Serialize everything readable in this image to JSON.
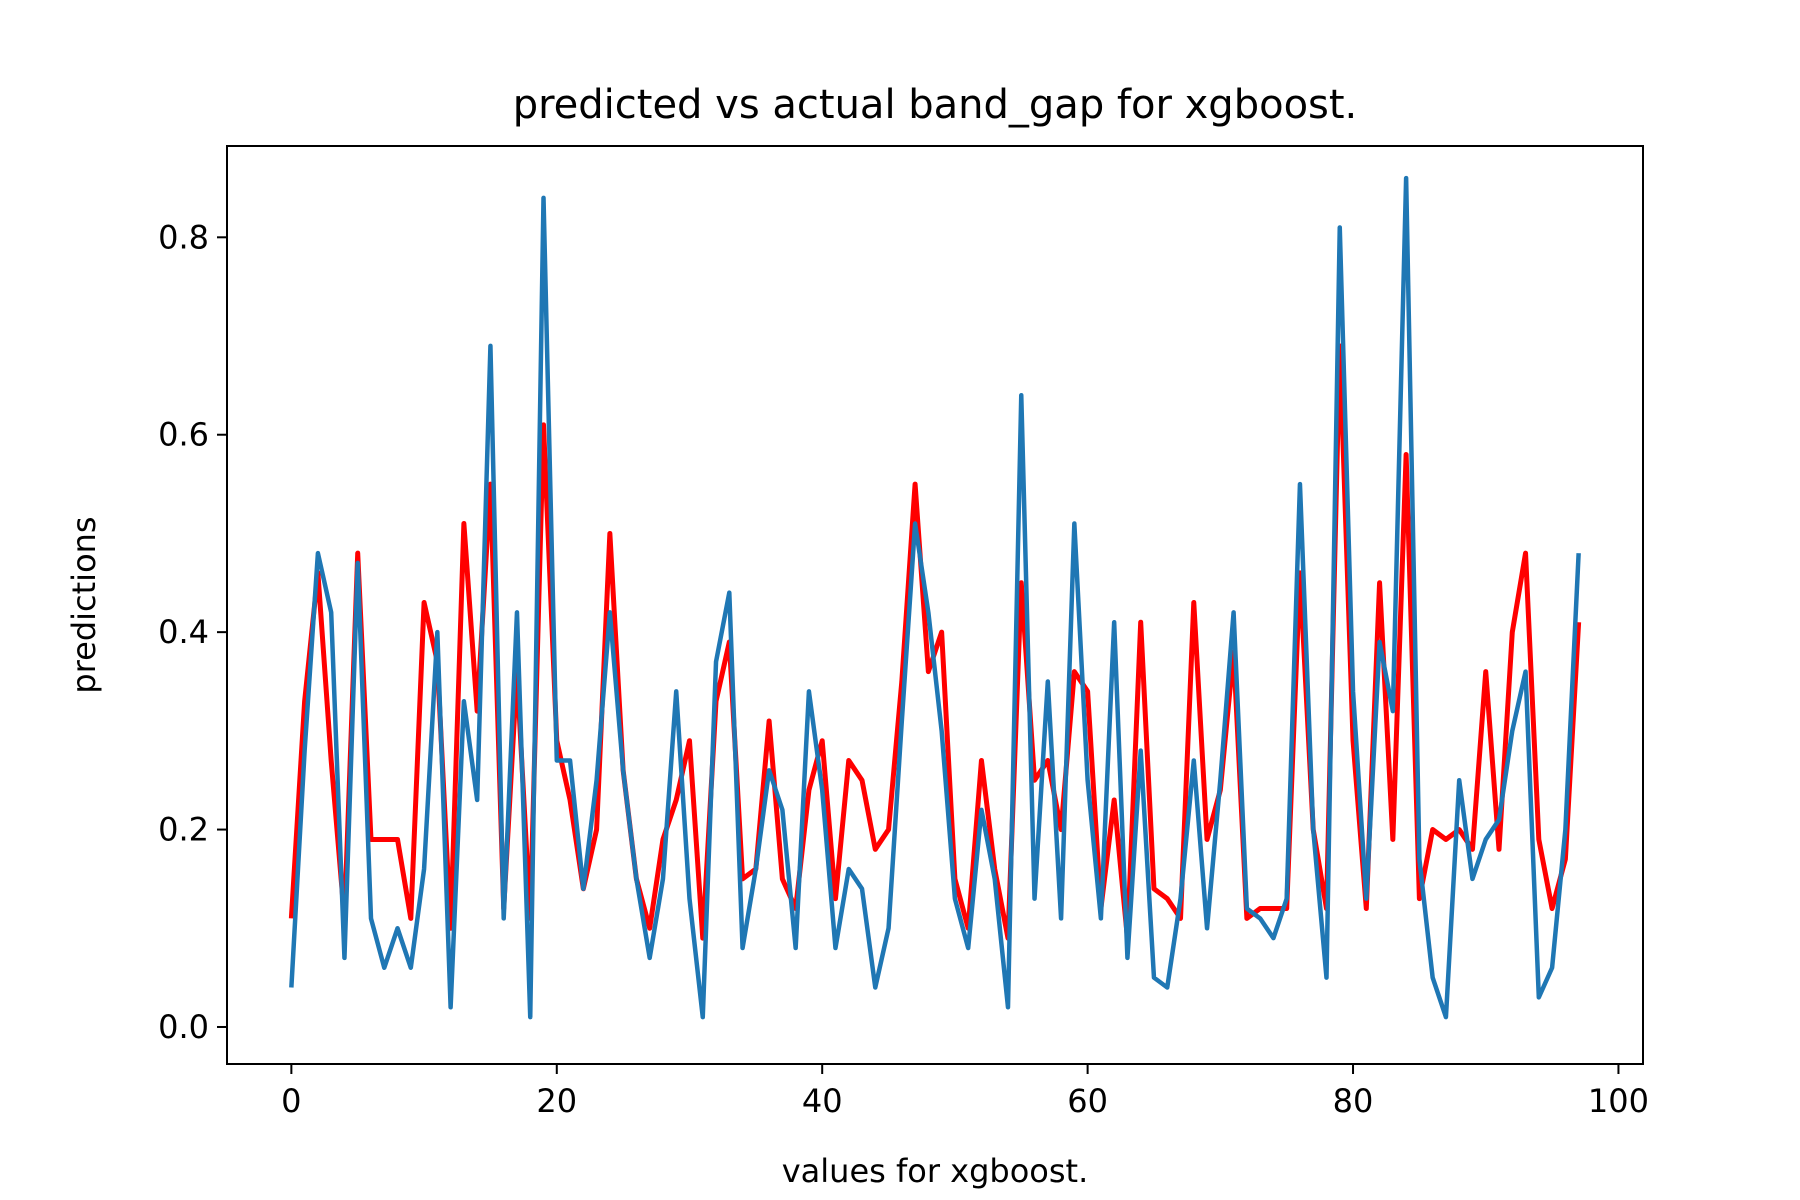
{
  "chart_data": {
    "type": "line",
    "title": "predicted vs actual band_gap for xgboost.",
    "xlabel": "values for xgboost.",
    "ylabel": "predictions",
    "xlim": [
      -4.85,
      101.85
    ],
    "ylim": [
      -0.0375,
      0.8925
    ],
    "xticks": [
      0,
      20,
      40,
      60,
      80,
      100
    ],
    "yticks": [
      0.0,
      0.2,
      0.4,
      0.6,
      0.8
    ],
    "grid": false,
    "legend": "none",
    "series": [
      {
        "color": "#ff0000",
        "x": [
          0,
          1,
          2,
          3,
          4,
          5,
          6,
          7,
          8,
          9,
          10,
          11,
          12,
          13,
          14,
          15,
          16,
          17,
          18,
          19,
          20,
          21,
          22,
          23,
          24,
          25,
          26,
          27,
          28,
          29,
          30,
          31,
          32,
          33,
          34,
          35,
          36,
          37,
          38,
          39,
          40,
          41,
          42,
          43,
          44,
          45,
          46,
          47,
          48,
          49,
          50,
          51,
          52,
          53,
          54,
          55,
          56,
          57,
          58,
          59,
          60,
          61,
          62,
          63,
          64,
          65,
          66,
          67,
          68,
          69,
          70,
          71,
          72,
          73,
          74,
          75,
          76,
          77,
          78,
          79,
          80,
          81,
          82,
          83,
          84,
          85,
          86,
          87,
          88,
          89,
          90,
          91,
          92,
          93,
          94,
          95,
          96,
          97
        ],
        "values": [
          0.11,
          0.33,
          0.46,
          0.27,
          0.11,
          0.48,
          0.19,
          0.19,
          0.19,
          0.11,
          0.43,
          0.37,
          0.1,
          0.51,
          0.32,
          0.55,
          0.12,
          0.36,
          0.11,
          0.61,
          0.29,
          0.23,
          0.14,
          0.2,
          0.5,
          0.26,
          0.15,
          0.1,
          0.19,
          0.23,
          0.29,
          0.09,
          0.33,
          0.39,
          0.15,
          0.16,
          0.31,
          0.15,
          0.12,
          0.24,
          0.29,
          0.13,
          0.27,
          0.25,
          0.18,
          0.2,
          0.35,
          0.55,
          0.36,
          0.4,
          0.15,
          0.1,
          0.27,
          0.16,
          0.09,
          0.45,
          0.25,
          0.27,
          0.2,
          0.36,
          0.34,
          0.12,
          0.23,
          0.09,
          0.41,
          0.14,
          0.13,
          0.11,
          0.43,
          0.19,
          0.24,
          0.38,
          0.11,
          0.12,
          0.12,
          0.12,
          0.46,
          0.2,
          0.12,
          0.69,
          0.29,
          0.12,
          0.45,
          0.19,
          0.58,
          0.13,
          0.2,
          0.19,
          0.2,
          0.18,
          0.36,
          0.18,
          0.4,
          0.48,
          0.19,
          0.12,
          0.17,
          0.41
        ]
      },
      {
        "color": "#1f77b4",
        "x": [
          0,
          1,
          2,
          3,
          4,
          5,
          6,
          7,
          8,
          9,
          10,
          11,
          12,
          13,
          14,
          15,
          16,
          17,
          18,
          19,
          20,
          21,
          22,
          23,
          24,
          25,
          26,
          27,
          28,
          29,
          30,
          31,
          32,
          33,
          34,
          35,
          36,
          37,
          38,
          39,
          40,
          41,
          42,
          43,
          44,
          45,
          46,
          47,
          48,
          49,
          50,
          51,
          52,
          53,
          54,
          55,
          56,
          57,
          58,
          59,
          60,
          61,
          62,
          63,
          64,
          65,
          66,
          67,
          68,
          69,
          70,
          71,
          72,
          73,
          74,
          75,
          76,
          77,
          78,
          79,
          80,
          81,
          82,
          83,
          84,
          85,
          86,
          87,
          88,
          89,
          90,
          91,
          92,
          93,
          94,
          95,
          96,
          97
        ],
        "values": [
          0.04,
          0.28,
          0.48,
          0.42,
          0.07,
          0.47,
          0.11,
          0.06,
          0.1,
          0.06,
          0.16,
          0.4,
          0.02,
          0.33,
          0.23,
          0.69,
          0.11,
          0.42,
          0.01,
          0.84,
          0.27,
          0.27,
          0.14,
          0.25,
          0.42,
          0.26,
          0.15,
          0.07,
          0.15,
          0.34,
          0.13,
          0.01,
          0.37,
          0.44,
          0.08,
          0.16,
          0.26,
          0.22,
          0.08,
          0.34,
          0.24,
          0.08,
          0.16,
          0.14,
          0.04,
          0.1,
          0.31,
          0.51,
          0.42,
          0.3,
          0.13,
          0.08,
          0.22,
          0.15,
          0.02,
          0.64,
          0.13,
          0.35,
          0.11,
          0.51,
          0.25,
          0.11,
          0.41,
          0.07,
          0.28,
          0.05,
          0.04,
          0.13,
          0.27,
          0.1,
          0.25,
          0.42,
          0.12,
          0.11,
          0.09,
          0.13,
          0.55,
          0.2,
          0.05,
          0.81,
          0.34,
          0.13,
          0.39,
          0.32,
          0.86,
          0.17,
          0.05,
          0.01,
          0.25,
          0.15,
          0.19,
          0.21,
          0.3,
          0.36,
          0.03,
          0.06,
          0.2,
          0.48
        ]
      }
    ]
  }
}
